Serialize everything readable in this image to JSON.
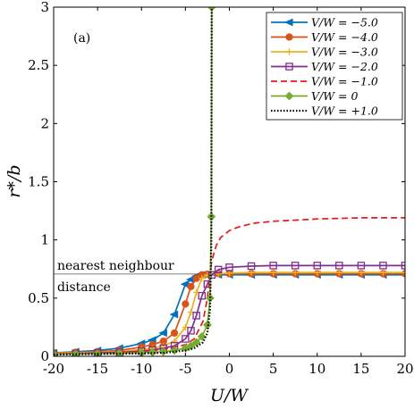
{
  "chart_data": {
    "type": "line",
    "panel_label": "(a)",
    "xlabel": "U/W",
    "ylabel": "r*/b",
    "xlim": [
      -20,
      20
    ],
    "ylim": [
      0,
      3
    ],
    "xticks": [
      -20,
      -15,
      -10,
      -5,
      0,
      5,
      10,
      15,
      20
    ],
    "yticks": [
      0,
      0.5,
      1,
      1.5,
      2,
      2.5,
      3
    ],
    "xtick_labels": [
      "-20",
      "-15",
      "-10",
      "-5",
      "0",
      "5",
      "10",
      "15",
      "20"
    ],
    "ytick_labels": [
      "0",
      "0.5",
      "1",
      "1.5",
      "2",
      "2.5",
      "3"
    ],
    "grid": false,
    "legend_position": "top-right",
    "reference_line": {
      "y": 0.707,
      "label_top": "nearest neighbour",
      "label_bottom": "distance"
    },
    "series": [
      {
        "name": "V/W = −5.0",
        "color": "#0072BD",
        "marker": "left-triangle",
        "dash": "solid",
        "x": [
          -20,
          -17.5,
          -15,
          -12.5,
          -10,
          -8.75,
          -7.5,
          -6.25,
          -5,
          -4.375,
          -3.75,
          -3.125,
          -2.5,
          -1.25,
          0,
          2.5,
          5,
          7.5,
          10,
          12.5,
          15,
          17.5,
          20
        ],
        "y": [
          0.03,
          0.04,
          0.05,
          0.07,
          0.11,
          0.14,
          0.2,
          0.36,
          0.62,
          0.66,
          0.69,
          0.7,
          0.7,
          0.7,
          0.7,
          0.7,
          0.7,
          0.7,
          0.7,
          0.7,
          0.7,
          0.7,
          0.7
        ]
      },
      {
        "name": "V/W = −4.0",
        "color": "#D95319",
        "marker": "circle",
        "dash": "solid",
        "x": [
          -20,
          -17.5,
          -15,
          -12.5,
          -10,
          -8.75,
          -7.5,
          -6.25,
          -5,
          -4.375,
          -3.75,
          -3.125,
          -2.5,
          -1.25,
          0,
          2.5,
          5,
          7.5,
          10,
          12.5,
          15,
          17.5,
          20
        ],
        "y": [
          0.03,
          0.035,
          0.04,
          0.05,
          0.08,
          0.1,
          0.13,
          0.2,
          0.45,
          0.6,
          0.67,
          0.7,
          0.705,
          0.71,
          0.71,
          0.71,
          0.71,
          0.71,
          0.71,
          0.71,
          0.71,
          0.71,
          0.71
        ]
      },
      {
        "name": "V/W = −3.0",
        "color": "#EDB120",
        "marker": "plus",
        "dash": "solid",
        "x": [
          -20,
          -17.5,
          -15,
          -12.5,
          -10,
          -8.75,
          -7.5,
          -6.25,
          -5,
          -4.375,
          -3.75,
          -3.125,
          -2.5,
          -1.25,
          0,
          2.5,
          5,
          7.5,
          10,
          12.5,
          15,
          17.5,
          20
        ],
        "y": [
          0.025,
          0.03,
          0.035,
          0.04,
          0.06,
          0.07,
          0.09,
          0.13,
          0.25,
          0.38,
          0.55,
          0.67,
          0.7,
          0.71,
          0.715,
          0.72,
          0.72,
          0.72,
          0.72,
          0.72,
          0.72,
          0.72,
          0.72
        ]
      },
      {
        "name": "V/W = −2.0",
        "color": "#7E2F8E",
        "marker": "square",
        "dash": "solid",
        "x": [
          -20,
          -17.5,
          -15,
          -12.5,
          -10,
          -8.75,
          -7.5,
          -6.25,
          -5,
          -4.375,
          -3.75,
          -3.125,
          -2.5,
          -2,
          -1.25,
          0,
          2.5,
          5,
          7.5,
          10,
          12.5,
          15,
          17.5,
          20
        ],
        "y": [
          0.02,
          0.025,
          0.03,
          0.035,
          0.045,
          0.055,
          0.07,
          0.09,
          0.15,
          0.22,
          0.35,
          0.52,
          0.62,
          0.7,
          0.745,
          0.765,
          0.775,
          0.78,
          0.78,
          0.78,
          0.78,
          0.78,
          0.78,
          0.78
        ]
      },
      {
        "name": "V/W = −1.0",
        "color": "#E31A1C",
        "marker": "none",
        "dash": "dashed",
        "x": [
          -20,
          -15,
          -10,
          -7.5,
          -5,
          -4,
          -3,
          -2.5,
          -2.2,
          -2,
          -1.5,
          -1,
          0,
          1,
          2,
          3,
          5,
          7.5,
          10,
          12.5,
          15,
          17.5,
          20
        ],
        "y": [
          0.02,
          0.025,
          0.04,
          0.06,
          0.1,
          0.15,
          0.3,
          0.5,
          0.7,
          0.82,
          0.95,
          1.02,
          1.08,
          1.11,
          1.13,
          1.145,
          1.16,
          1.17,
          1.18,
          1.185,
          1.19,
          1.19,
          1.19
        ]
      },
      {
        "name": "V/W = 0",
        "color": "#77AC30",
        "marker": "diamond",
        "dash": "solid",
        "x": [
          -20,
          -17.5,
          -15,
          -12.5,
          -10,
          -8.75,
          -7.5,
          -6.25,
          -5,
          -4.375,
          -3.75,
          -3.125,
          -2.5,
          -2.2,
          -2.05,
          -2.01
        ],
        "y": [
          0.02,
          0.02,
          0.022,
          0.025,
          0.03,
          0.035,
          0.04,
          0.05,
          0.07,
          0.09,
          0.12,
          0.17,
          0.27,
          0.5,
          1.2,
          3.0
        ]
      },
      {
        "name": "V/W = +1.0",
        "color": "#000000",
        "marker": "none",
        "dash": "dotted",
        "x": [
          -20,
          -15,
          -10,
          -7.5,
          -5,
          -4,
          -3,
          -2.5,
          -2.2,
          -2.05,
          -2.01
        ],
        "y": [
          0.015,
          0.02,
          0.025,
          0.03,
          0.05,
          0.07,
          0.12,
          0.2,
          0.4,
          1.0,
          3.0
        ]
      }
    ]
  }
}
